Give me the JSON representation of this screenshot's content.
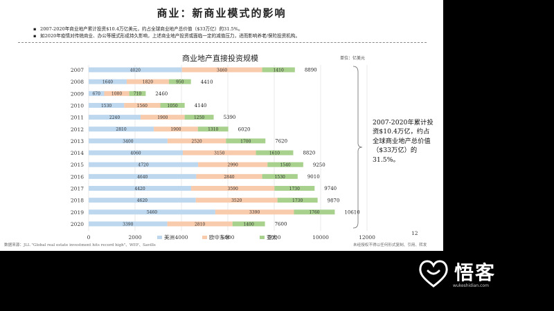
{
  "slide": {
    "title": "商业：新商业模式的影响",
    "bullets": [
      "2007-2020年商业地产累计投资$10.4万亿美元，约占全球商业地产总价值（$33万亿）的31.5%。",
      "如2020年疫情对传统商业、办公等模式形成持久影响，上述商业地产投资或面临一定的减值压力，进而影响养老/保险投资机构。"
    ],
    "bullet_marker": "▪",
    "note": "2007-2020年累计投资$10.4万亿，约占全球商业地产总价值（$33万亿）的31.5%。",
    "footer_source": "数据来源：JLL \"Global real estate investment hits record high\"、WEF、Savills",
    "footer_right": "未经授权不得以任何形式复制、引用、转发",
    "page_number": "12",
    "logo_text": "悟客",
    "logo_sub": "wukeshidian.com"
  },
  "chart_data": {
    "type": "bar",
    "orientation": "horizontal",
    "stacked": true,
    "title": "商业地产直接投资规模",
    "unit_label": "单位：亿美元",
    "categories": [
      "2007",
      "2008",
      "2009",
      "2010",
      "2011",
      "2012",
      "2013",
      "2014",
      "2015",
      "2016",
      "2017",
      "2018",
      "2019",
      "2020"
    ],
    "series": [
      {
        "name": "美洲",
        "color": "#bdd7ee",
        "values": [
          4020,
          1640,
          670,
          1530,
          2240,
          2810,
          3400,
          4060,
          4720,
          4640,
          4420,
          4620,
          5460,
          3390
        ]
      },
      {
        "name": "欧中东非",
        "color": "#f8cbad",
        "values": [
          3460,
          1820,
          1080,
          1560,
          1900,
          1900,
          2520,
          3150,
          2990,
          2840,
          3590,
          3520,
          3390,
          2810
        ]
      },
      {
        "name": "亚太",
        "color": "#a9d18e",
        "values": [
          1410,
          950,
          710,
          1050,
          1250,
          1310,
          1700,
          1610,
          1540,
          1530,
          1730,
          1730,
          1760,
          1400
        ]
      }
    ],
    "totals": [
      8890,
      4410,
      2460,
      4140,
      5390,
      6020,
      7620,
      8820,
      9250,
      9010,
      9740,
      9870,
      10610,
      7600
    ],
    "xlim": [
      0,
      12000
    ],
    "xticks": [
      0,
      2000,
      4000,
      6000,
      8000,
      10000,
      12000
    ],
    "grid": true,
    "legend_position": "bottom"
  }
}
